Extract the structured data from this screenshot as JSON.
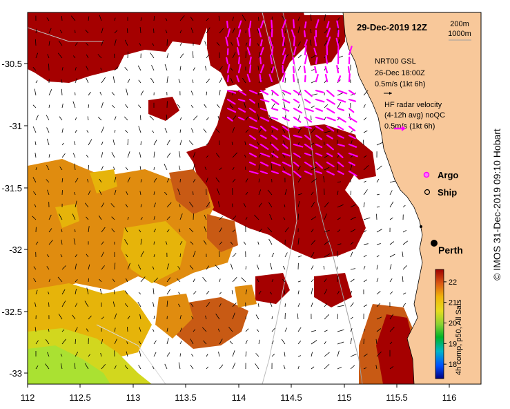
{
  "map": {
    "title": "29-Dec-2019 12Z",
    "contours": [
      "200m",
      "1000m"
    ],
    "gsl_legend": [
      "NRT00 GSL",
      "26-Dec 18:00Z",
      "0.5m/s (1kt 6h)"
    ],
    "hf_legend": [
      "HF radar velocity",
      "(4-12h avg) noQC",
      "0.5m/s (1kt 6h)"
    ],
    "markers": {
      "argo": "Argo",
      "ship": "Ship"
    },
    "place": "Perth",
    "x_ticks": [
      "112",
      "112.5",
      "113",
      "113.5",
      "114",
      "114.5",
      "115",
      "115.5",
      "116"
    ],
    "y_ticks": [
      "-30.5",
      "-31",
      "-31.5",
      "-32",
      "-32.5",
      "-33"
    ],
    "colorbar": {
      "label": "4h comp, p50, All Sats",
      "ticks": [
        "22",
        "21",
        "20",
        "19",
        "18"
      ],
      "ticks_values": [
        22,
        21,
        20,
        19,
        18
      ],
      "min": 17.3,
      "max": 22.6
    },
    "credit": "© IMOS 31-Dec-2019 09:10 Hobart",
    "colors": {
      "land": "#f8c89a",
      "warm": "#a50000",
      "mid": "#c85a14",
      "orange": "#e08c0f",
      "gold": "#e6b40a",
      "yellow": "#d2d71e",
      "lime": "#aae132",
      "hf_vector": "#ff00ff"
    }
  }
}
